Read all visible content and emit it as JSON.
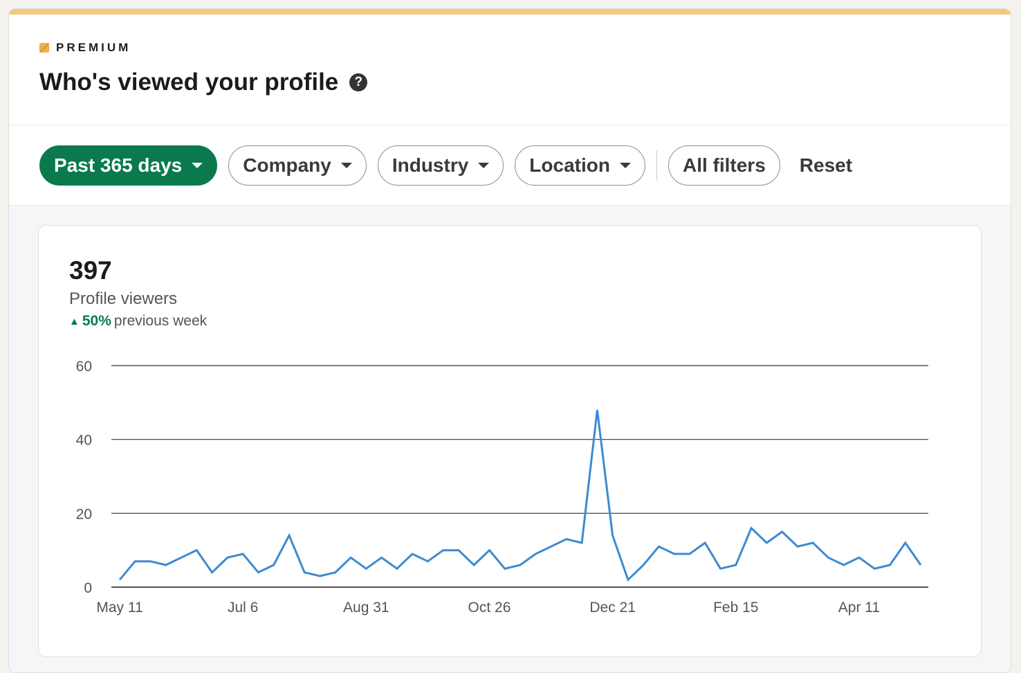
{
  "header": {
    "badge": "PREMIUM",
    "title": "Who's viewed your profile",
    "help_icon": "question-circle-icon"
  },
  "filters": {
    "time": "Past 365 days",
    "company": "Company",
    "industry": "Industry",
    "location": "Location",
    "all": "All filters",
    "reset": "Reset"
  },
  "stats": {
    "count": "397",
    "label": "Profile viewers",
    "delta_pct": "50%",
    "delta_text": "previous week",
    "delta_arrow": "▲"
  },
  "colors": {
    "accent": "#0a7a4e",
    "line": "#3d8ad1",
    "premium": "#f0b14d"
  },
  "chart_data": {
    "type": "line",
    "x_tick_labels": [
      "May 11",
      "Jul 6",
      "Aug 31",
      "Oct 26",
      "Dec 21",
      "Feb 15",
      "Apr 11"
    ],
    "x_interval": "weekly",
    "y_ticks": [
      0,
      20,
      40,
      60
    ],
    "ylim": [
      0,
      60
    ],
    "grid": true,
    "values": [
      2,
      7,
      7,
      6,
      8,
      10,
      4,
      8,
      9,
      4,
      6,
      14,
      4,
      3,
      4,
      8,
      5,
      8,
      5,
      9,
      7,
      10,
      10,
      6,
      10,
      5,
      6,
      9,
      11,
      13,
      12,
      48,
      14,
      2,
      6,
      11,
      9,
      9,
      12,
      5,
      6,
      16,
      12,
      15,
      11,
      12,
      8,
      6,
      8,
      5,
      6,
      12,
      6
    ]
  }
}
